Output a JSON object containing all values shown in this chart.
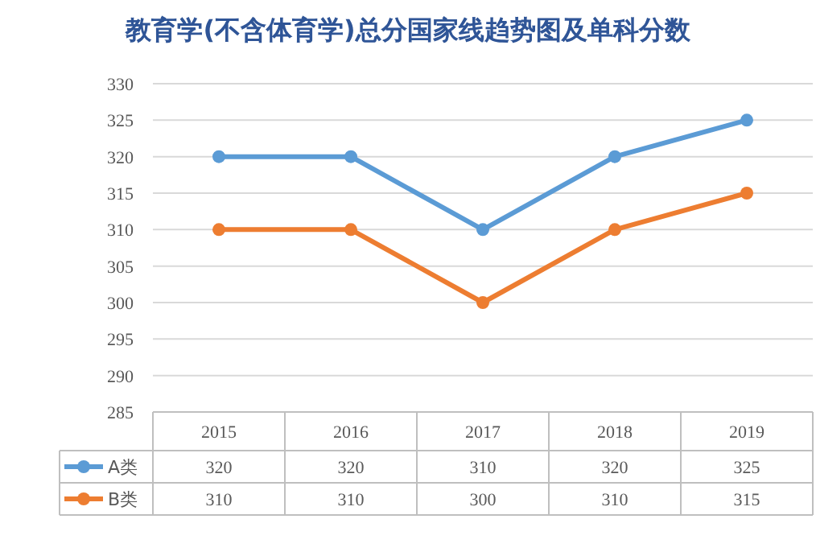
{
  "chart_data": {
    "type": "line",
    "title": "教育学(不含体育学)总分国家线趋势图及单科分数",
    "categories": [
      "2015",
      "2016",
      "2017",
      "2018",
      "2019"
    ],
    "series": [
      {
        "name": "A类",
        "color": "#5b9bd5",
        "values": [
          320,
          320,
          310,
          320,
          325
        ]
      },
      {
        "name": "B类",
        "color": "#ed7d31",
        "values": [
          310,
          310,
          300,
          310,
          315
        ]
      }
    ],
    "ylim": [
      285,
      330
    ],
    "yticks": [
      285,
      290,
      295,
      300,
      305,
      310,
      315,
      320,
      325,
      330
    ],
    "grid": "y",
    "legend": "bottom",
    "marker": "circle",
    "line_style": "solid",
    "data_labels": true
  }
}
